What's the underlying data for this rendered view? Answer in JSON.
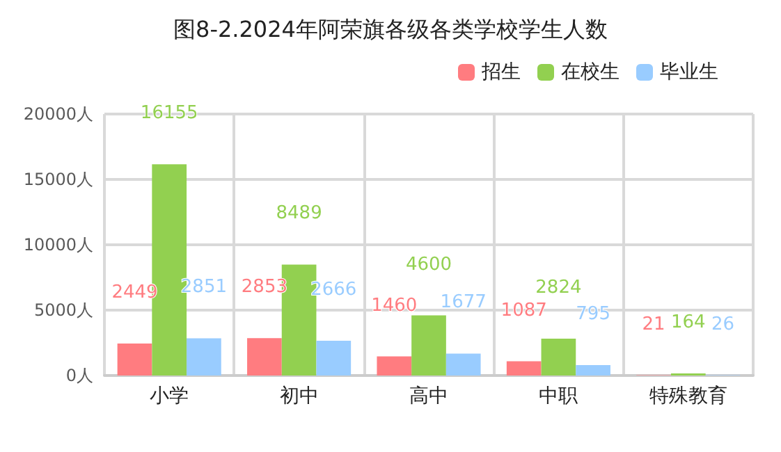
{
  "chart_data": {
    "type": "bar",
    "title": "图8-2.2024年阿荣旗各级各类学校学生人数",
    "categories": [
      "小学",
      "初中",
      "高中",
      "中职",
      "特殊教育"
    ],
    "series": [
      {
        "name": "招生",
        "color": "#ff7c80",
        "values": [
          2449,
          2853,
          1460,
          1087,
          21
        ]
      },
      {
        "name": "在校生",
        "color": "#92d050",
        "values": [
          16155,
          8489,
          4600,
          2824,
          164
        ]
      },
      {
        "name": "毕业生",
        "color": "#99ccff",
        "values": [
          2851,
          2666,
          1677,
          795,
          26
        ]
      }
    ],
    "ylim": [
      0,
      20000
    ],
    "yticks": [
      {
        "value": 0,
        "label": "0人"
      },
      {
        "value": 5000,
        "label": "5000人"
      },
      {
        "value": 10000,
        "label": "10000人"
      },
      {
        "value": 15000,
        "label": "15000人"
      },
      {
        "value": 20000,
        "label": "20000人"
      }
    ],
    "grid": true,
    "legend": "top right",
    "data_labels": true
  }
}
